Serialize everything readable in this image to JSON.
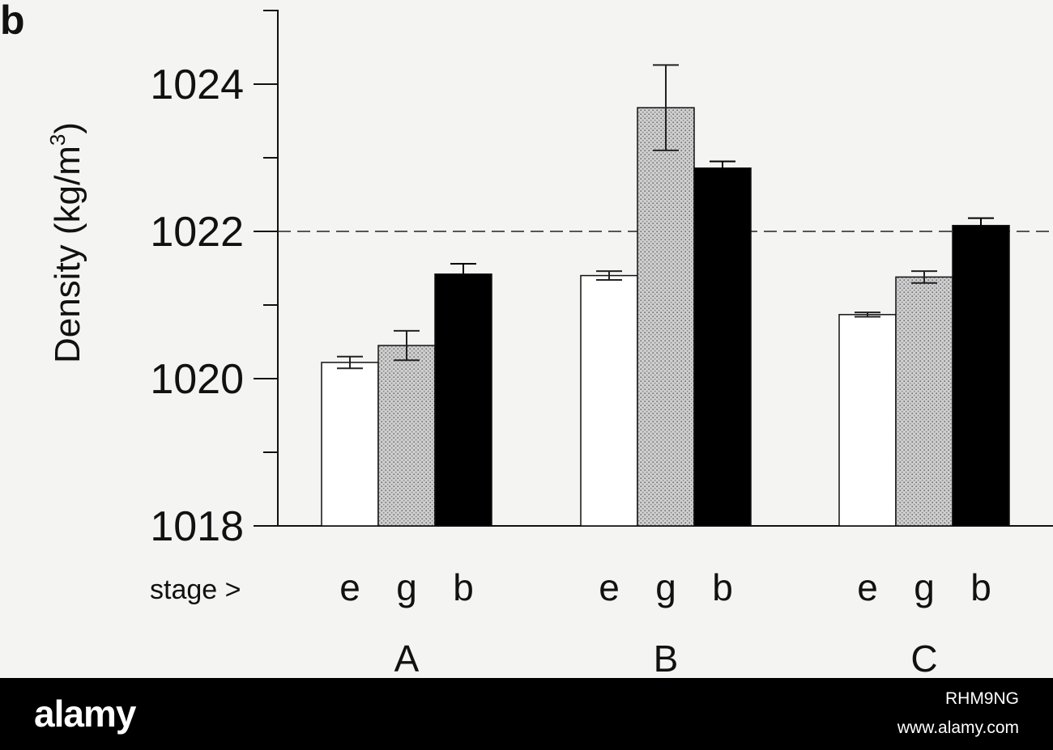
{
  "chart_data": {
    "type": "bar",
    "panel_label": "b",
    "ylabel_main": "Density (kg/m",
    "ylabel_sup": "3",
    "ylabel_close": ")",
    "ylim": [
      1018,
      1025
    ],
    "yticks_major": [
      1018,
      1020,
      1022,
      1024
    ],
    "yticks_major_labels": [
      "1018",
      "1020",
      "1022",
      "1024"
    ],
    "yticks_minor": [
      1019,
      1021,
      1023,
      1025
    ],
    "reference_line": 1022,
    "stage_prefix": "stage >",
    "stages": [
      "e",
      "g",
      "b"
    ],
    "groups": [
      {
        "name": "A",
        "values": [
          1020.22,
          1020.45,
          1021.42
        ],
        "errors": [
          0.08,
          0.2,
          0.14
        ]
      },
      {
        "name": "B",
        "values": [
          1021.4,
          1023.68,
          1022.86
        ],
        "errors": [
          0.06,
          0.58,
          0.09
        ]
      },
      {
        "name": "C",
        "values": [
          1020.87,
          1021.38,
          1022.08
        ],
        "errors": [
          0.03,
          0.08,
          0.1
        ]
      }
    ],
    "stage_fills": [
      "#ffffff",
      "#c8c8c8",
      "#000000"
    ],
    "grid": false,
    "legend": "none"
  },
  "watermark": {
    "brand": "alamy",
    "image_id": "RHM9NG",
    "site": "www.alamy.com"
  }
}
